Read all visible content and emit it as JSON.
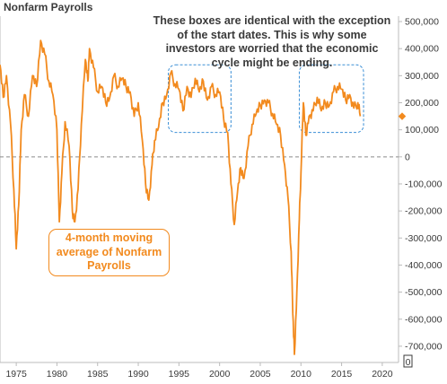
{
  "chart_data": {
    "type": "line",
    "title": "Nonfarm Payrolls",
    "ylim": [
      -760000,
      520000
    ],
    "xlim": [
      1973,
      2022
    ],
    "y_ticks": [
      "500,000",
      "400,000",
      "300,000",
      "200,000",
      "100,000",
      "0",
      "-100,000",
      "-200,000",
      "-300,000",
      "-400,000",
      "-500,000",
      "-600,000",
      "-700,000"
    ],
    "y_tick_values": [
      500000,
      400000,
      300000,
      200000,
      100000,
      0,
      -100000,
      -200000,
      -300000,
      -400000,
      -500000,
      -600000,
      -700000
    ],
    "x_ticks": [
      "1975",
      "1980",
      "1985",
      "1990",
      "1995",
      "2000",
      "2005",
      "2010",
      "2015",
      "2020"
    ],
    "x_tick_values": [
      1975,
      1980,
      1985,
      1990,
      1995,
      2000,
      2005,
      2010,
      2015,
      2020
    ],
    "series": [
      {
        "color": "#f28a1e",
        "x": [
          1973.0,
          1973.4,
          1973.8,
          1974.3,
          1974.7,
          1975.0,
          1975.3,
          1975.6,
          1976.0,
          1976.5,
          1977.0,
          1977.5,
          1978.0,
          1978.5,
          1979.0,
          1979.5,
          1980.0,
          1980.3,
          1980.6,
          1981.0,
          1981.5,
          1981.9,
          1982.2,
          1982.6,
          1983.0,
          1983.5,
          1983.8,
          1984.0,
          1984.5,
          1985.0,
          1985.5,
          1986.0,
          1986.5,
          1987.0,
          1987.5,
          1988.0,
          1988.5,
          1989.0,
          1989.5,
          1990.0,
          1990.5,
          1990.9,
          1991.3,
          1991.7,
          1992.0,
          1992.5,
          1993.0,
          1993.5,
          1994.0,
          1994.5,
          1995.0,
          1995.5,
          1996.0,
          1996.5,
          1997.0,
          1997.5,
          1998.0,
          1998.5,
          1999.0,
          1999.5,
          2000.0,
          2000.5,
          2001.0,
          2001.4,
          2001.8,
          2002.2,
          2002.6,
          2003.0,
          2003.5,
          2004.0,
          2004.5,
          2005.0,
          2005.5,
          2006.0,
          2006.5,
          2007.0,
          2007.5,
          2008.0,
          2008.4,
          2008.8,
          2009.0,
          2009.2,
          2009.5,
          2009.8,
          2010.0,
          2010.3,
          2010.6,
          2011.0,
          2011.5,
          2012.0,
          2012.5,
          2013.0,
          2013.5,
          2014.0,
          2014.5,
          2015.0,
          2015.5,
          2016.0,
          2016.5,
          2017.0,
          2017.3
        ],
        "values": [
          340000,
          220000,
          300000,
          120000,
          -120000,
          -340000,
          -180000,
          100000,
          230000,
          150000,
          300000,
          260000,
          430000,
          380000,
          280000,
          230000,
          100000,
          -240000,
          -60000,
          130000,
          40000,
          -200000,
          -240000,
          -120000,
          120000,
          360000,
          280000,
          400000,
          330000,
          240000,
          260000,
          200000,
          220000,
          300000,
          260000,
          290000,
          260000,
          240000,
          150000,
          200000,
          60000,
          -100000,
          -160000,
          -30000,
          60000,
          110000,
          200000,
          230000,
          310000,
          270000,
          250000,
          170000,
          260000,
          220000,
          290000,
          240000,
          280000,
          210000,
          260000,
          230000,
          240000,
          140000,
          90000,
          -100000,
          -250000,
          -130000,
          -40000,
          -80000,
          40000,
          120000,
          160000,
          190000,
          210000,
          200000,
          160000,
          120000,
          80000,
          -30000,
          -150000,
          -350000,
          -580000,
          -730000,
          -500000,
          -230000,
          -60000,
          200000,
          80000,
          150000,
          170000,
          220000,
          170000,
          200000,
          190000,
          240000,
          260000,
          250000,
          210000,
          230000,
          180000,
          200000,
          150000
        ]
      }
    ],
    "end_marker": {
      "x": 2022,
      "value": 150000,
      "color": "#f28a1e"
    },
    "annotations": {
      "note": "These boxes are identical with the exception of the start dates.  This is why some investors are worried that the economic cycle might be ending.",
      "callout": "4-month moving average of Nonfarm Payrolls",
      "boxes": [
        {
          "x0": 1993.7,
          "x1": 2001.4,
          "y0": 340000,
          "y1": 90000
        },
        {
          "x0": 2009.8,
          "x1": 2017.7,
          "y0": 340000,
          "y1": 90000
        }
      ]
    },
    "zero_line_label": "0",
    "axis_end_label": "0",
    "grid": false,
    "legend": "none"
  }
}
